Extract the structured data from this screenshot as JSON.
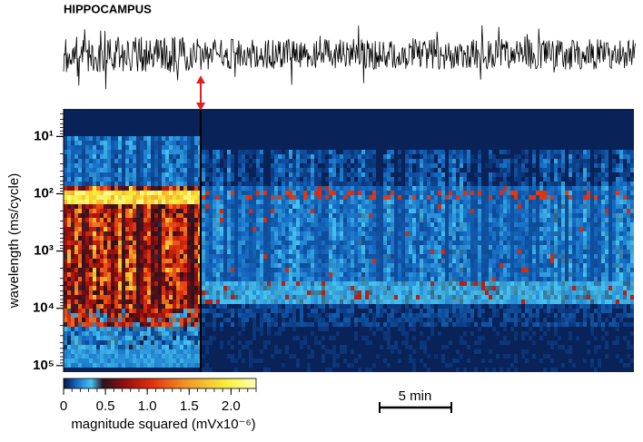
{
  "chart_data": {
    "type": "spectrogram",
    "title": "HIPPOCAMPUS",
    "ylabel": "wavelength (ms/cycle)",
    "yscale": "log",
    "y_inverted": true,
    "ylim": [
      3.3,
      130000
    ],
    "yticks": [
      {
        "value": 10,
        "label": "10¹"
      },
      {
        "value": 100,
        "label": "10²"
      },
      {
        "value": 1000,
        "label": "10³"
      },
      {
        "value": 10000,
        "label": "10⁴"
      },
      {
        "value": 100000,
        "label": "10⁵"
      }
    ],
    "colorbar": {
      "label": "magnitude squared (mVx10⁻⁶)",
      "clim": [
        0,
        2.3
      ],
      "ticks": [
        0,
        0.5,
        {
          "value": 1,
          "label": "1.0"
        },
        1.5,
        {
          "value": 2,
          "label": "2.0"
        }
      ]
    },
    "scalebar": {
      "label": "5 min"
    }
  }
}
